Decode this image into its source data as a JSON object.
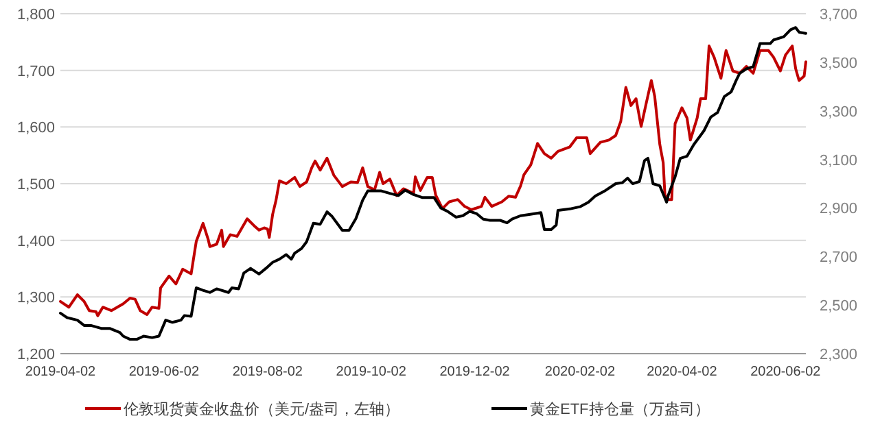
{
  "chart_data": {
    "type": "line",
    "xlim": [
      "2019-04-02",
      "2020-06-14"
    ],
    "xticks": [
      "2019-04-02",
      "2019-06-02",
      "2019-08-02",
      "2019-10-02",
      "2019-12-02",
      "2020-02-02",
      "2020-04-02",
      "2020-06-02"
    ],
    "ylim": [
      1200,
      1800
    ],
    "yticks": [
      {
        "value": 1200,
        "label": "1,200"
      },
      {
        "value": 1300,
        "label": "1,300"
      },
      {
        "value": 1400,
        "label": "1,400"
      },
      {
        "value": 1500,
        "label": "1,500"
      },
      {
        "value": 1600,
        "label": "1,600"
      },
      {
        "value": 1700,
        "label": "1,700"
      },
      {
        "value": 1800,
        "label": "1,800"
      }
    ],
    "y2lim": [
      2300,
      3700
    ],
    "y2ticks": [
      {
        "value": 2300,
        "label": "2,300"
      },
      {
        "value": 2500,
        "label": "2,500"
      },
      {
        "value": 2700,
        "label": "2,700"
      },
      {
        "value": 2900,
        "label": "2,900"
      },
      {
        "value": 3100,
        "label": "3,100"
      },
      {
        "value": 3300,
        "label": "3,300"
      },
      {
        "value": 3500,
        "label": "3,500"
      },
      {
        "value": 3700,
        "label": "3,700"
      }
    ],
    "grid": "y",
    "legend": "bottom",
    "marker": "none",
    "line_style": "solid",
    "series": [
      {
        "name": "伦敦现货黄金收盘价（美元/盎司，左轴）",
        "color": "#c00000",
        "x": [
          "2019-04-02",
          "2019-04-07",
          "2019-04-12",
          "2019-04-16",
          "2019-04-19",
          "2019-04-23",
          "2019-04-24",
          "2019-04-27",
          "2019-05-02",
          "2019-05-09",
          "2019-05-13",
          "2019-05-16",
          "2019-05-19",
          "2019-05-23",
          "2019-05-26",
          "2019-05-30",
          "2019-05-31",
          "2019-06-05",
          "2019-06-09",
          "2019-06-13",
          "2019-06-18",
          "2019-06-21",
          "2019-06-25",
          "2019-06-28",
          "2019-06-29",
          "2019-07-03",
          "2019-07-06",
          "2019-07-07",
          "2019-07-11",
          "2019-07-15",
          "2019-07-21",
          "2019-07-25",
          "2019-07-28",
          "2019-07-31",
          "2019-08-02",
          "2019-08-03",
          "2019-08-05",
          "2019-08-07",
          "2019-08-09",
          "2019-08-13",
          "2019-08-18",
          "2019-08-21",
          "2019-08-25",
          "2019-08-28",
          "2019-08-30",
          "2019-09-02",
          "2019-09-06",
          "2019-09-10",
          "2019-09-15",
          "2019-09-20",
          "2019-09-24",
          "2019-09-27",
          "2019-09-30",
          "2019-10-04",
          "2019-10-07",
          "2019-10-09",
          "2019-10-13",
          "2019-10-17",
          "2019-10-21",
          "2019-10-27",
          "2019-10-28",
          "2019-10-31",
          "2019-11-04",
          "2019-11-07",
          "2019-11-09",
          "2019-11-13",
          "2019-11-17",
          "2019-11-22",
          "2019-11-26",
          "2019-11-30",
          "2019-12-06",
          "2019-12-08",
          "2019-12-12",
          "2019-12-18",
          "2019-12-22",
          "2019-12-26",
          "2019-12-29",
          "2019-12-31",
          "2020-01-04",
          "2020-01-08",
          "2020-01-12",
          "2020-01-16",
          "2020-01-20",
          "2020-01-27",
          "2020-01-31",
          "2020-02-06",
          "2020-02-08",
          "2020-02-14",
          "2020-02-19",
          "2020-02-23",
          "2020-02-26",
          "2020-02-29",
          "2020-03-03",
          "2020-03-06",
          "2020-03-09",
          "2020-03-12",
          "2020-03-15",
          "2020-03-17",
          "2020-03-20",
          "2020-03-22",
          "2020-03-23",
          "2020-03-25",
          "2020-03-27",
          "2020-03-29",
          "2020-04-02",
          "2020-04-05",
          "2020-04-07",
          "2020-04-11",
          "2020-04-13",
          "2020-04-16",
          "2020-04-18",
          "2020-04-21",
          "2020-04-25",
          "2020-04-28",
          "2020-05-02",
          "2020-05-06",
          "2020-05-10",
          "2020-05-14",
          "2020-05-18",
          "2020-05-23",
          "2020-05-26",
          "2020-05-30",
          "2020-06-02",
          "2020-06-06",
          "2020-06-08",
          "2020-06-10",
          "2020-06-13",
          "2020-06-14"
        ],
        "values": [
          1292,
          1282,
          1304,
          1292,
          1276,
          1274,
          1267,
          1282,
          1276,
          1288,
          1298,
          1296,
          1276,
          1269,
          1282,
          1280,
          1316,
          1337,
          1323,
          1349,
          1341,
          1398,
          1430,
          1402,
          1389,
          1393,
          1418,
          1389,
          1410,
          1407,
          1438,
          1426,
          1418,
          1422,
          1420,
          1405,
          1446,
          1471,
          1505,
          1500,
          1511,
          1495,
          1503,
          1528,
          1540,
          1524,
          1545,
          1515,
          1495,
          1503,
          1502,
          1528,
          1495,
          1489,
          1520,
          1500,
          1508,
          1479,
          1491,
          1483,
          1512,
          1488,
          1511,
          1511,
          1480,
          1456,
          1468,
          1472,
          1460,
          1454,
          1460,
          1476,
          1460,
          1468,
          1478,
          1476,
          1496,
          1516,
          1533,
          1571,
          1553,
          1545,
          1557,
          1565,
          1581,
          1581,
          1553,
          1573,
          1577,
          1585,
          1610,
          1670,
          1638,
          1650,
          1601,
          1642,
          1682,
          1654,
          1569,
          1537,
          1480,
          1472,
          1472,
          1606,
          1634,
          1616,
          1577,
          1616,
          1650,
          1650,
          1743,
          1723,
          1686,
          1735,
          1699,
          1695,
          1707,
          1695,
          1735,
          1735,
          1723,
          1699,
          1727,
          1743,
          1703,
          1682,
          1690,
          1715
        ]
      },
      {
        "name": "黄金ETF持仓量（万盎司）",
        "color": "#000000",
        "axis": "y2",
        "x": [
          "2019-04-02",
          "2019-04-06",
          "2019-04-12",
          "2019-04-16",
          "2019-04-20",
          "2019-04-26",
          "2019-05-01",
          "2019-05-07",
          "2019-05-09",
          "2019-05-13",
          "2019-05-17",
          "2019-05-21",
          "2019-05-26",
          "2019-05-30",
          "2019-06-03",
          "2019-06-07",
          "2019-06-12",
          "2019-06-14",
          "2019-06-18",
          "2019-06-21",
          "2019-06-25",
          "2019-06-29",
          "2019-07-03",
          "2019-07-10",
          "2019-07-12",
          "2019-07-16",
          "2019-07-19",
          "2019-07-23",
          "2019-07-28",
          "2019-08-01",
          "2019-08-05",
          "2019-08-09",
          "2019-08-13",
          "2019-08-16",
          "2019-08-18",
          "2019-08-22",
          "2019-08-25",
          "2019-08-29",
          "2019-09-02",
          "2019-09-06",
          "2019-09-09",
          "2019-09-15",
          "2019-09-19",
          "2019-09-23",
          "2019-09-27",
          "2019-09-30",
          "2019-10-08",
          "2019-10-13",
          "2019-10-18",
          "2019-10-22",
          "2019-10-27",
          "2019-11-01",
          "2019-11-08",
          "2019-11-12",
          "2019-11-16",
          "2019-11-21",
          "2019-11-25",
          "2019-11-29",
          "2019-12-03",
          "2019-12-07",
          "2019-12-11",
          "2019-12-17",
          "2019-12-21",
          "2019-12-24",
          "2019-12-29",
          "2020-01-03",
          "2020-01-10",
          "2020-01-12",
          "2020-01-16",
          "2020-01-19",
          "2020-01-20",
          "2020-01-27",
          "2020-02-02",
          "2020-02-07",
          "2020-02-11",
          "2020-02-17",
          "2020-02-23",
          "2020-02-27",
          "2020-03-01",
          "2020-03-04",
          "2020-03-08",
          "2020-03-11",
          "2020-03-13",
          "2020-03-16",
          "2020-03-20",
          "2020-03-24",
          "2020-03-25",
          "2020-03-29",
          "2020-04-01",
          "2020-04-05",
          "2020-04-09",
          "2020-04-15",
          "2020-04-19",
          "2020-04-23",
          "2020-04-27",
          "2020-05-01",
          "2020-05-04",
          "2020-05-06",
          "2020-05-10",
          "2020-05-14",
          "2020-05-18",
          "2020-05-24",
          "2020-05-26",
          "2020-06-01",
          "2020-06-05",
          "2020-06-08",
          "2020-06-10",
          "2020-06-14"
        ],
        "values": [
          2467,
          2448,
          2438,
          2416,
          2416,
          2404,
          2404,
          2387,
          2372,
          2359,
          2359,
          2372,
          2366,
          2372,
          2438,
          2429,
          2438,
          2457,
          2454,
          2571,
          2561,
          2552,
          2567,
          2552,
          2571,
          2567,
          2632,
          2651,
          2628,
          2651,
          2676,
          2689,
          2708,
          2689,
          2714,
          2733,
          2761,
          2837,
          2833,
          2884,
          2865,
          2808,
          2808,
          2856,
          2932,
          2970,
          2970,
          2960,
          2951,
          2973,
          2955,
          2943,
          2943,
          2900,
          2886,
          2862,
          2868,
          2886,
          2877,
          2854,
          2849,
          2849,
          2839,
          2854,
          2868,
          2873,
          2881,
          2811,
          2811,
          2830,
          2890,
          2896,
          2905,
          2924,
          2949,
          2972,
          3000,
          3004,
          3023,
          3000,
          3009,
          3095,
          3105,
          3000,
          2991,
          2924,
          2953,
          3028,
          3104,
          3113,
          3161,
          3218,
          3274,
          3293,
          3359,
          3378,
          3426,
          3454,
          3473,
          3482,
          3577,
          3577,
          3592,
          3605,
          3634,
          3643,
          3624,
          3619
        ]
      }
    ]
  }
}
